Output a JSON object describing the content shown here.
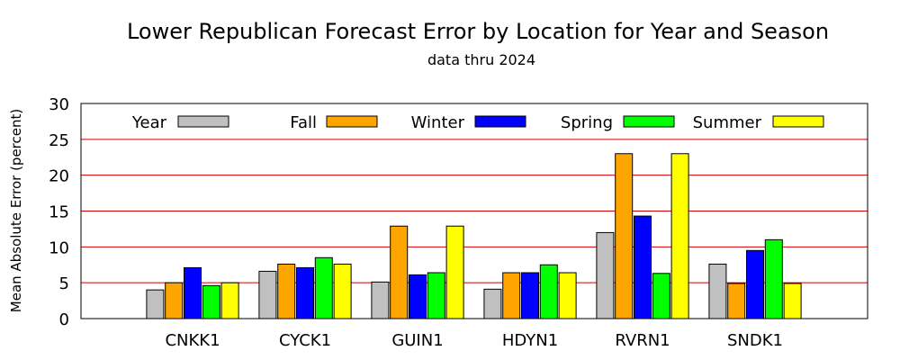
{
  "chart_data": {
    "type": "bar",
    "title": "Lower Republican Forecast Error by Location for Year and Season",
    "subtitle": "data thru 2024",
    "xlabel": "",
    "ylabel": "Mean Absolute Error (percent)",
    "ylim": [
      0,
      30
    ],
    "yticks": [
      0,
      5,
      10,
      15,
      20,
      25,
      30
    ],
    "grid": "horizontal",
    "legend_position": "top",
    "categories": [
      "CNKK1",
      "CYCK1",
      "GUIN1",
      "HDYN1",
      "RVRN1",
      "SNDK1"
    ],
    "series": [
      {
        "name": "Year",
        "color": "#c0c0c0",
        "values": [
          4.0,
          6.6,
          5.1,
          4.1,
          12.0,
          7.6
        ]
      },
      {
        "name": "Fall",
        "color": "#ffa500",
        "values": [
          5.0,
          7.6,
          12.9,
          6.4,
          23.0,
          4.9
        ]
      },
      {
        "name": "Winter",
        "color": "#0000ff",
        "values": [
          7.1,
          7.1,
          6.1,
          6.4,
          14.3,
          9.5
        ]
      },
      {
        "name": "Spring",
        "color": "#00ff00",
        "values": [
          4.6,
          8.5,
          6.4,
          7.5,
          6.3,
          11.0
        ]
      },
      {
        "name": "Summer",
        "color": "#ffff00",
        "values": [
          5.0,
          7.6,
          12.9,
          6.4,
          23.0,
          4.9
        ]
      }
    ],
    "gridline_color": "#cc0000"
  }
}
